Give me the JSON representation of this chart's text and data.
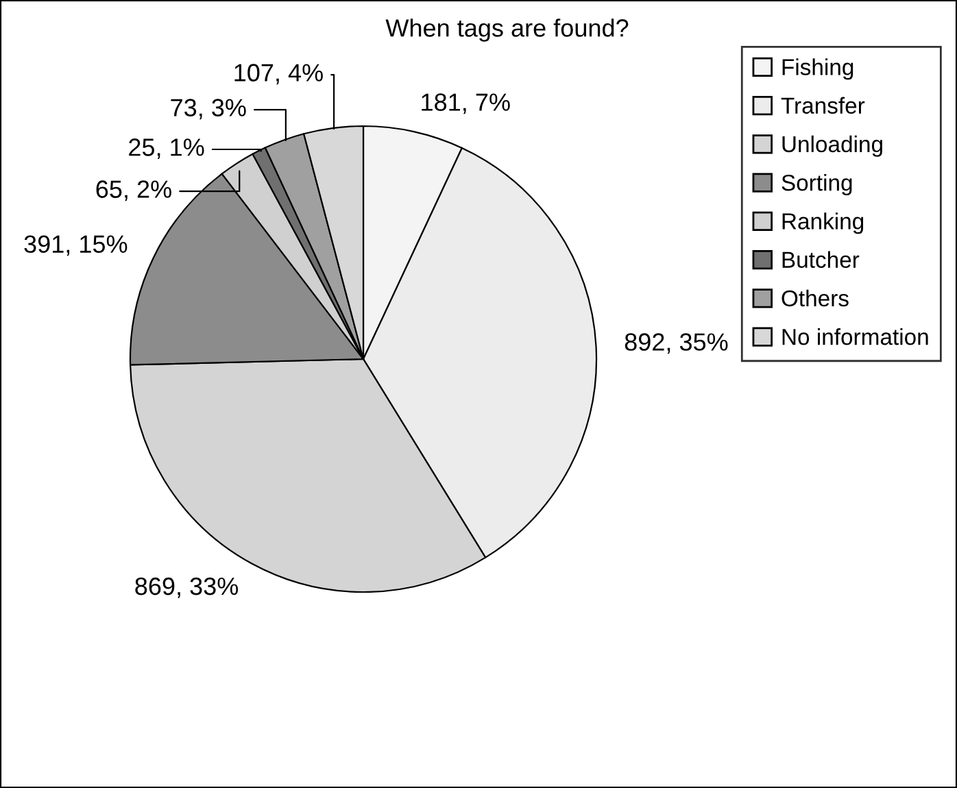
{
  "chart_data": {
    "type": "pie",
    "title": "When tags are found?",
    "categories": [
      "Fishing",
      "Transfer",
      "Unloading",
      "Sorting",
      "Ranking",
      "Butcher",
      "Others",
      "No information"
    ],
    "values": [
      181,
      892,
      869,
      391,
      65,
      25,
      73,
      107
    ],
    "value_labels": [
      "181, 7%",
      "892, 35%",
      "869, 33%",
      "391, 15%",
      "65, 2%",
      "25, 1%",
      "73, 3%",
      "107, 4%"
    ],
    "colors": [
      "#f4f4f4",
      "#ececec",
      "#d4d4d4",
      "#8c8c8c",
      "#d0d0d0",
      "#707070",
      "#a0a0a0",
      "#d8d8d8"
    ],
    "legend": "right"
  }
}
